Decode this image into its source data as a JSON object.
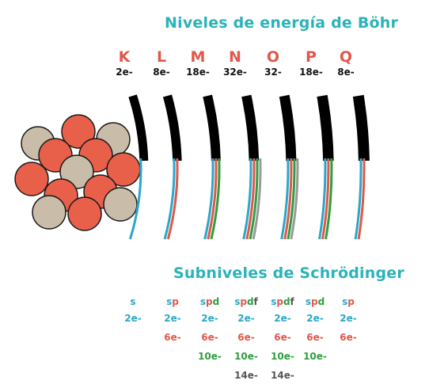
{
  "title_top": "Niveles de energía de Böhr",
  "title_bottom": "Subniveles de Schrödinger",
  "shells": [
    {
      "letter": "K",
      "capacity": "2e-"
    },
    {
      "letter": "L",
      "capacity": "8e-"
    },
    {
      "letter": "M",
      "capacity": "18e-"
    },
    {
      "letter": "N",
      "capacity": "32e-"
    },
    {
      "letter": "O",
      "capacity": "32-"
    },
    {
      "letter": "P",
      "capacity": "18e-"
    },
    {
      "letter": "Q",
      "capacity": "8e-"
    }
  ],
  "sublevels": [
    {
      "label": [
        {
          "t": "s",
          "c": "s"
        }
      ],
      "cells": [
        {
          "t": "2e-",
          "c": "s"
        }
      ]
    },
    {
      "label": [
        {
          "t": "s",
          "c": "s"
        },
        {
          "t": "p",
          "c": "p"
        }
      ],
      "cells": [
        {
          "t": "2e-",
          "c": "s"
        },
        {
          "t": "6e-",
          "c": "p"
        }
      ]
    },
    {
      "label": [
        {
          "t": "s",
          "c": "s"
        },
        {
          "t": "p",
          "c": "p"
        },
        {
          "t": "d",
          "c": "d"
        }
      ],
      "cells": [
        {
          "t": "2e-",
          "c": "s"
        },
        {
          "t": "6e-",
          "c": "p"
        },
        {
          "t": "10e-",
          "c": "d"
        }
      ]
    },
    {
      "label": [
        {
          "t": "s",
          "c": "s"
        },
        {
          "t": "p",
          "c": "p"
        },
        {
          "t": "d",
          "c": "d"
        },
        {
          "t": "f",
          "c": "f"
        }
      ],
      "cells": [
        {
          "t": "2e-",
          "c": "s"
        },
        {
          "t": "6e-",
          "c": "p"
        },
        {
          "t": "10e-",
          "c": "d"
        },
        {
          "t": "14e-",
          "c": "f"
        }
      ]
    },
    {
      "label": [
        {
          "t": "s",
          "c": "s"
        },
        {
          "t": "p",
          "c": "p"
        },
        {
          "t": "d",
          "c": "d"
        },
        {
          "t": "f",
          "c": "f"
        }
      ],
      "cells": [
        {
          "t": "2e-",
          "c": "s"
        },
        {
          "t": "6e-",
          "c": "p"
        },
        {
          "t": "10e-",
          "c": "d"
        },
        {
          "t": "14e-",
          "c": "f"
        }
      ]
    },
    {
      "label": [
        {
          "t": "s",
          "c": "s"
        },
        {
          "t": "p",
          "c": "p"
        },
        {
          "t": "d",
          "c": "d"
        }
      ],
      "cells": [
        {
          "t": "2e-",
          "c": "s"
        },
        {
          "t": "6e-",
          "c": "p"
        },
        {
          "t": "10e-",
          "c": "d"
        }
      ]
    },
    {
      "label": [
        {
          "t": "s",
          "c": "s"
        },
        {
          "t": "p",
          "c": "p"
        }
      ],
      "cells": [
        {
          "t": "2e-",
          "c": "s"
        },
        {
          "t": "6e-",
          "c": "p"
        }
      ]
    }
  ],
  "colors": {
    "title": "#2ab3b8",
    "shell_letter": "#e0584a",
    "s": "#2aa7c9",
    "p": "#e0584a",
    "d": "#2e9e3f",
    "f": "#999999",
    "proton": "#e8604a",
    "neutron": "#c9bca9"
  }
}
